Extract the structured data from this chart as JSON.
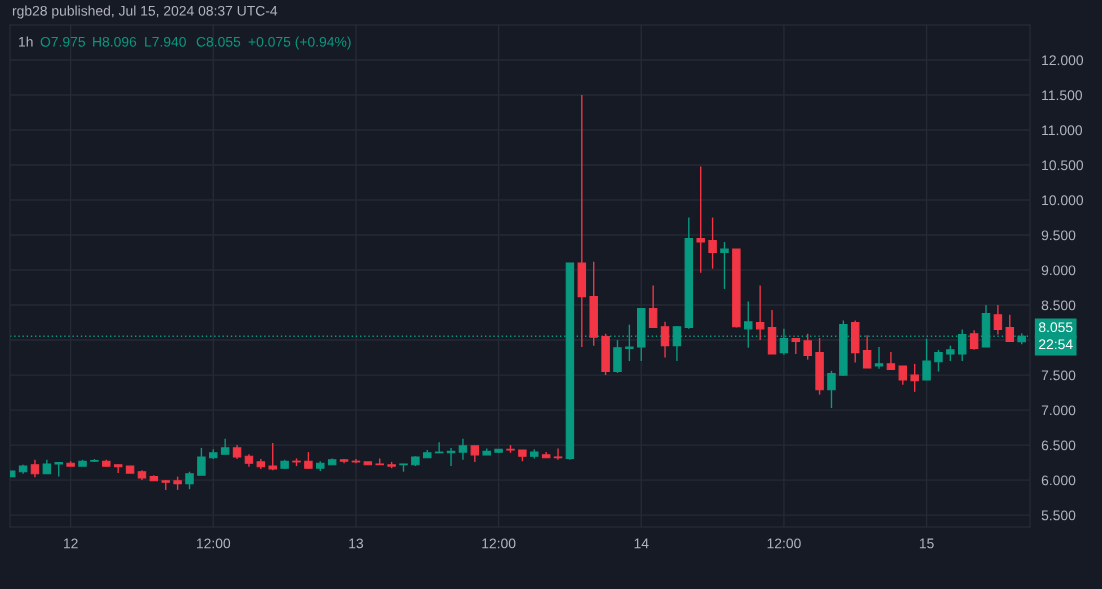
{
  "chart_data": {
    "type": "candlestick",
    "title": "rgb28 published, Jul 15, 2024 08:37 UTC-4",
    "subtitle": "1h",
    "annotations": [
      "O7.975",
      "H8.096",
      "L7.940",
      "C8.055",
      "+0.075 (+0.94%)",
      "22:54"
    ],
    "x": [
      "2024-07-11T19:00",
      "2024-07-11T20:00",
      "2024-07-11T21:00",
      "2024-07-11T22:00",
      "2024-07-11T23:00",
      "2024-07-12T00:00",
      "2024-07-12T01:00",
      "2024-07-12T02:00",
      "2024-07-12T03:00",
      "2024-07-12T04:00",
      "2024-07-12T05:00",
      "2024-07-12T06:00",
      "2024-07-12T07:00",
      "2024-07-12T08:00",
      "2024-07-12T09:00",
      "2024-07-12T10:00",
      "2024-07-12T11:00",
      "2024-07-12T12:00",
      "2024-07-12T13:00",
      "2024-07-12T14:00",
      "2024-07-12T15:00",
      "2024-07-12T16:00",
      "2024-07-12T17:00",
      "2024-07-12T18:00",
      "2024-07-12T19:00",
      "2024-07-12T20:00",
      "2024-07-12T21:00",
      "2024-07-12T22:00",
      "2024-07-12T23:00",
      "2024-07-13T00:00",
      "2024-07-13T01:00",
      "2024-07-13T02:00",
      "2024-07-13T03:00",
      "2024-07-13T04:00",
      "2024-07-13T05:00",
      "2024-07-13T06:00",
      "2024-07-13T07:00",
      "2024-07-13T08:00",
      "2024-07-13T09:00",
      "2024-07-13T10:00",
      "2024-07-13T11:00",
      "2024-07-13T12:00",
      "2024-07-13T13:00",
      "2024-07-13T14:00",
      "2024-07-13T15:00",
      "2024-07-13T16:00",
      "2024-07-13T17:00",
      "2024-07-13T18:00",
      "2024-07-13T19:00",
      "2024-07-13T20:00",
      "2024-07-13T21:00",
      "2024-07-13T22:00",
      "2024-07-13T23:00",
      "2024-07-14T00:00",
      "2024-07-14T01:00",
      "2024-07-14T02:00",
      "2024-07-14T03:00",
      "2024-07-14T04:00",
      "2024-07-14T05:00",
      "2024-07-14T06:00",
      "2024-07-14T07:00",
      "2024-07-14T08:00",
      "2024-07-14T09:00",
      "2024-07-14T10:00",
      "2024-07-14T11:00",
      "2024-07-14T12:00",
      "2024-07-14T13:00",
      "2024-07-14T14:00",
      "2024-07-14T15:00",
      "2024-07-14T16:00",
      "2024-07-14T17:00",
      "2024-07-14T18:00",
      "2024-07-14T19:00",
      "2024-07-14T20:00",
      "2024-07-14T21:00",
      "2024-07-14T22:00",
      "2024-07-14T23:00",
      "2024-07-15T00:00",
      "2024-07-15T01:00",
      "2024-07-15T02:00",
      "2024-07-15T03:00",
      "2024-07-15T04:00",
      "2024-07-15T05:00",
      "2024-07-15T06:00",
      "2024-07-15T07:00",
      "2024-07-15T08:00"
    ],
    "ohlc": [
      [
        6.05,
        6.13,
        6.05,
        6.13
      ],
      [
        6.12,
        6.22,
        6.09,
        6.2
      ],
      [
        6.22,
        6.29,
        6.04,
        6.09
      ],
      [
        6.09,
        6.29,
        6.09,
        6.23
      ],
      [
        6.23,
        6.26,
        6.05,
        6.25
      ],
      [
        6.24,
        6.27,
        6.2,
        6.2
      ],
      [
        6.2,
        6.29,
        6.2,
        6.27
      ],
      [
        6.27,
        6.3,
        6.26,
        6.28
      ],
      [
        6.27,
        6.29,
        6.19,
        6.2
      ],
      [
        6.22,
        6.22,
        6.1,
        6.19
      ],
      [
        6.2,
        6.2,
        6.1,
        6.1
      ],
      [
        6.12,
        6.14,
        6.0,
        6.03
      ],
      [
        6.05,
        6.07,
        5.99,
        5.99
      ],
      [
        5.99,
        6.0,
        5.86,
        5.97
      ],
      [
        5.99,
        6.05,
        5.86,
        5.95
      ],
      [
        5.95,
        6.12,
        5.87,
        6.09
      ],
      [
        6.07,
        6.46,
        6.07,
        6.33
      ],
      [
        6.32,
        6.44,
        6.3,
        6.39
      ],
      [
        6.37,
        6.59,
        6.37,
        6.46
      ],
      [
        6.46,
        6.5,
        6.3,
        6.33
      ],
      [
        6.34,
        6.37,
        6.19,
        6.24
      ],
      [
        6.26,
        6.3,
        6.16,
        6.19
      ],
      [
        6.2,
        6.53,
        6.14,
        6.16
      ],
      [
        6.17,
        6.29,
        6.16,
        6.27
      ],
      [
        6.27,
        6.31,
        6.2,
        6.26
      ],
      [
        6.27,
        6.4,
        6.16,
        6.17
      ],
      [
        6.17,
        6.27,
        6.13,
        6.24
      ],
      [
        6.22,
        6.31,
        6.22,
        6.29
      ],
      [
        6.29,
        6.3,
        6.24,
        6.27
      ],
      [
        6.27,
        6.3,
        6.24,
        6.26
      ],
      [
        6.26,
        6.26,
        6.22,
        6.22
      ],
      [
        6.23,
        6.31,
        6.22,
        6.22
      ],
      [
        6.22,
        6.26,
        6.17,
        6.2
      ],
      [
        6.22,
        6.23,
        6.12,
        6.23
      ],
      [
        6.22,
        6.34,
        6.2,
        6.33
      ],
      [
        6.32,
        6.43,
        6.32,
        6.39
      ],
      [
        6.39,
        6.54,
        6.39,
        6.4
      ],
      [
        6.39,
        6.46,
        6.2,
        6.41
      ],
      [
        6.4,
        6.59,
        6.29,
        6.49
      ],
      [
        6.49,
        6.49,
        6.26,
        6.36
      ],
      [
        6.36,
        6.45,
        6.36,
        6.41
      ],
      [
        6.4,
        6.44,
        6.39,
        6.44
      ],
      [
        6.44,
        6.5,
        6.39,
        6.43
      ],
      [
        6.43,
        6.43,
        6.27,
        6.34
      ],
      [
        6.34,
        6.44,
        6.31,
        6.4
      ],
      [
        6.36,
        6.4,
        6.32,
        6.32
      ],
      [
        6.33,
        6.45,
        6.29,
        6.32
      ],
      [
        6.31,
        9.1,
        6.29,
        9.1
      ],
      [
        9.1,
        11.5,
        7.9,
        8.62
      ],
      [
        8.62,
        9.12,
        7.92,
        8.04
      ],
      [
        8.05,
        8.09,
        7.5,
        7.55
      ],
      [
        7.55,
        8.0,
        7.53,
        7.89
      ],
      [
        7.88,
        8.22,
        7.7,
        7.9
      ],
      [
        7.9,
        8.45,
        7.7,
        8.45
      ],
      [
        8.45,
        8.78,
        8.18,
        8.18
      ],
      [
        8.19,
        8.26,
        7.75,
        7.92
      ],
      [
        7.92,
        8.2,
        7.7,
        8.19
      ],
      [
        8.18,
        9.75,
        8.16,
        9.45
      ],
      [
        9.45,
        10.48,
        8.96,
        9.4
      ],
      [
        9.42,
        9.75,
        9.02,
        9.25
      ],
      [
        9.25,
        9.4,
        8.73,
        9.3
      ],
      [
        9.3,
        9.3,
        8.18,
        8.19
      ],
      [
        8.16,
        8.55,
        7.89,
        8.26
      ],
      [
        8.25,
        8.78,
        8.0,
        8.16
      ],
      [
        8.18,
        8.43,
        7.8,
        7.8
      ],
      [
        7.82,
        8.16,
        7.79,
        8.02
      ],
      [
        8.02,
        8.02,
        7.8,
        7.98
      ],
      [
        7.99,
        8.09,
        7.72,
        7.78
      ],
      [
        7.82,
        8.03,
        7.22,
        7.29
      ],
      [
        7.29,
        7.56,
        7.03,
        7.52
      ],
      [
        7.5,
        8.28,
        7.49,
        8.22
      ],
      [
        8.25,
        8.28,
        7.68,
        7.82
      ],
      [
        7.85,
        8.07,
        7.6,
        7.6
      ],
      [
        7.63,
        7.9,
        7.59,
        7.66
      ],
      [
        7.66,
        7.83,
        7.58,
        7.58
      ],
      [
        7.63,
        7.63,
        7.36,
        7.43
      ],
      [
        7.5,
        7.66,
        7.26,
        7.42
      ],
      [
        7.43,
        8.02,
        7.43,
        7.7
      ],
      [
        7.69,
        7.86,
        7.55,
        7.82
      ],
      [
        7.8,
        7.92,
        7.7,
        7.86
      ],
      [
        7.8,
        8.15,
        7.7,
        8.08
      ],
      [
        8.09,
        8.14,
        7.86,
        7.88
      ],
      [
        7.9,
        8.5,
        7.9,
        8.38
      ],
      [
        8.36,
        8.5,
        8.08,
        8.15
      ],
      [
        8.18,
        8.36,
        7.98,
        7.98
      ],
      [
        7.975,
        8.096,
        7.94,
        8.055
      ]
    ],
    "colors": [
      "#089981",
      "#089981",
      "#f23645",
      "#089981",
      "#089981",
      "#f23645",
      "#089981",
      "#089981",
      "#f23645",
      "#f23645",
      "#f23645",
      "#f23645",
      "#f23645",
      "#f23645",
      "#f23645",
      "#089981",
      "#089981",
      "#089981",
      "#089981",
      "#f23645",
      "#f23645",
      "#f23645",
      "#f23645",
      "#089981",
      "#f23645",
      "#f23645",
      "#089981",
      "#089981",
      "#f23645",
      "#f23645",
      "#f23645",
      "#f23645",
      "#f23645",
      "#089981",
      "#089981",
      "#089981",
      "#089981",
      "#089981",
      "#089981",
      "#f23645",
      "#089981",
      "#089981",
      "#f23645",
      "#f23645",
      "#089981",
      "#f23645",
      "#f23645",
      "#089981",
      "#f23645",
      "#f23645",
      "#f23645",
      "#089981",
      "#089981",
      "#089981",
      "#f23645",
      "#f23645",
      "#089981",
      "#089981",
      "#f23645",
      "#f23645",
      "#089981",
      "#f23645",
      "#089981",
      "#f23645",
      "#f23645",
      "#089981",
      "#f23645",
      "#f23645",
      "#f23645",
      "#089981",
      "#089981",
      "#f23645",
      "#f23645",
      "#089981",
      "#f23645",
      "#f23645",
      "#f23645",
      "#089981",
      "#089981",
      "#089981",
      "#089981",
      "#f23645",
      "#089981",
      "#f23645",
      "#f23645",
      "#089981"
    ],
    "xlim": [
      "2024-07-11T18:54",
      "2024-07-15T08:42"
    ],
    "xticks": [
      {
        "value": "2024-07-12",
        "label": "12"
      },
      {
        "value": "2024-07-12T12:00",
        "label": "12:00"
      },
      {
        "value": "2024-07-13",
        "label": "13"
      },
      {
        "value": "2024-07-13T12:00",
        "label": "12:00"
      },
      {
        "value": "2024-07-14",
        "label": "14"
      },
      {
        "value": "2024-07-14T12:00",
        "label": "12:00"
      },
      {
        "value": "2024-07-15",
        "label": "15"
      }
    ],
    "ylim": [
      5.33,
      12.5
    ],
    "yticks": [
      {
        "value": 5.5,
        "label": "5.500"
      },
      {
        "value": 6,
        "label": "6.000"
      },
      {
        "value": 6.5,
        "label": "6.500"
      },
      {
        "value": 7,
        "label": "7.000"
      },
      {
        "value": 7.5,
        "label": "7.500"
      },
      {
        "value": 8,
        "label": null
      },
      {
        "value": 8.5,
        "label": "8.500"
      },
      {
        "value": 9,
        "label": "9.000"
      },
      {
        "value": 9.5,
        "label": "9.500"
      },
      {
        "value": 10,
        "label": "10.000"
      },
      {
        "value": 10.5,
        "label": "10.500"
      },
      {
        "value": 11,
        "label": "11.000"
      },
      {
        "value": 11.5,
        "label": "11.500"
      },
      {
        "value": 12,
        "label": "12.000"
      }
    ],
    "ref_lines": [
      {
        "axis": "y",
        "value": 8.055,
        "label": "8.055",
        "color": "#089981",
        "line_style": "dotted"
      }
    ],
    "grid": true
  }
}
